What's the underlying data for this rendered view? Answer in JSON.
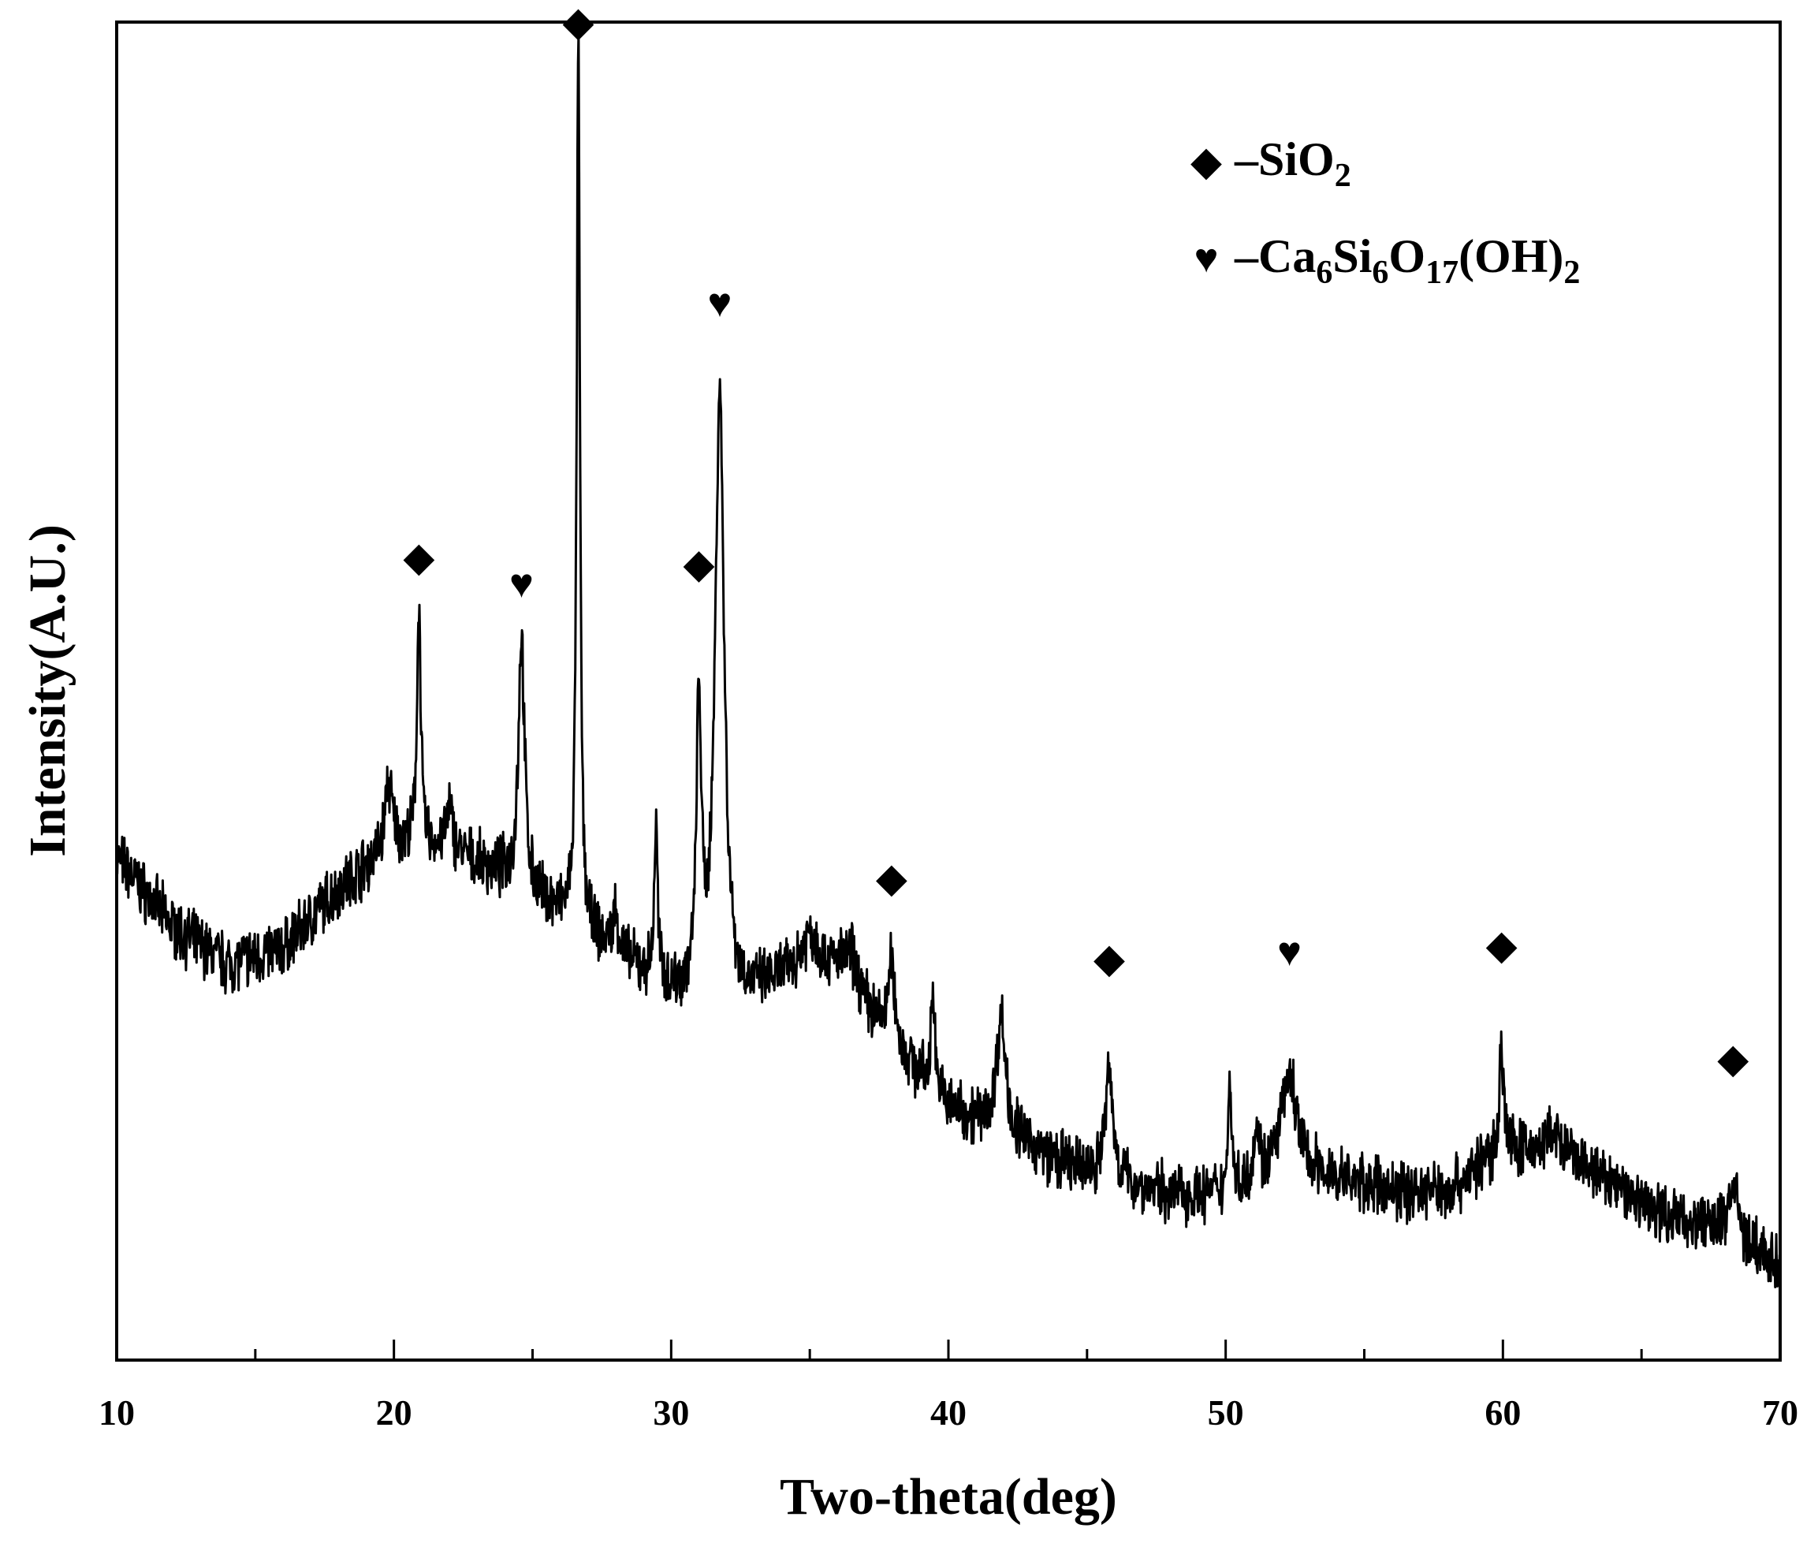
{
  "chart_data": {
    "type": "line",
    "title": "",
    "xlabel": "Two-theta(deg)",
    "ylabel": "Intensity(A.U.)",
    "xlim": [
      10,
      70
    ],
    "ylim": [
      0,
      100
    ],
    "x_ticks": [
      "10",
      "20",
      "30",
      "40",
      "50",
      "60",
      "70"
    ],
    "y_ticks_shown": false,
    "grid": false,
    "legend_position": "top-right",
    "line_color": "#000000",
    "legend": [
      {
        "symbol": "◆",
        "symbol_icon": "diamond-icon",
        "dash": "–",
        "formula": [
          [
            "SiO",
            ""
          ],
          [
            "2",
            "sub"
          ]
        ]
      },
      {
        "symbol": "♥",
        "symbol_icon": "heart-icon",
        "dash": "–",
        "formula": [
          [
            "Ca",
            ""
          ],
          [
            "6",
            "sub"
          ],
          [
            "Si",
            ""
          ],
          [
            "6",
            "sub"
          ],
          [
            "O",
            ""
          ],
          [
            "17",
            "sub"
          ],
          [
            "(OH)",
            ""
          ],
          [
            "2",
            "sub"
          ]
        ]
      }
    ],
    "series": [
      {
        "baseline": [
          [
            10,
            37.6
          ],
          [
            12,
            32.4
          ],
          [
            14,
            29.6
          ],
          [
            16,
            30.7
          ],
          [
            18,
            35.2
          ],
          [
            20,
            38.5
          ],
          [
            22,
            38.0
          ],
          [
            24,
            36.1
          ],
          [
            26,
            33.3
          ],
          [
            28,
            30.1
          ],
          [
            30,
            27.5
          ],
          [
            32,
            26.0
          ],
          [
            34,
            28.3
          ],
          [
            36,
            28.9
          ],
          [
            38,
            23.4
          ],
          [
            40,
            18.8
          ],
          [
            42,
            17.0
          ],
          [
            44,
            14.7
          ],
          [
            46,
            13.2
          ],
          [
            48,
            12.4
          ],
          [
            50,
            12.2
          ],
          [
            52,
            14.0
          ],
          [
            54,
            13.5
          ],
          [
            56,
            12.6
          ],
          [
            58,
            12.7
          ],
          [
            60,
            15.7
          ],
          [
            62,
            15.6
          ],
          [
            64,
            13.0
          ],
          [
            66,
            10.8
          ],
          [
            68,
            9.6
          ],
          [
            70,
            7.0
          ]
        ],
        "peaks": [
          {
            "x": 19.8,
            "h": 5.0,
            "w": 0.15
          },
          {
            "x": 20.9,
            "h": 18.5,
            "w": 0.08
          },
          {
            "x": 22.0,
            "h": 3.0,
            "w": 0.15
          },
          {
            "x": 24.6,
            "h": 19.0,
            "w": 0.13
          },
          {
            "x": 26.65,
            "h": 66.0,
            "w": 0.07
          },
          {
            "x": 28.0,
            "h": 3.0,
            "w": 0.15
          },
          {
            "x": 29.45,
            "h": 11.5,
            "w": 0.07
          },
          {
            "x": 31.0,
            "h": 22.0,
            "w": 0.1
          },
          {
            "x": 31.75,
            "h": 46.0,
            "w": 0.2
          },
          {
            "x": 35.0,
            "h": 3.0,
            "w": 0.4
          },
          {
            "x": 36.5,
            "h": 2.5,
            "w": 0.3
          },
          {
            "x": 37.95,
            "h": 6.0,
            "w": 0.15
          },
          {
            "x": 39.45,
            "h": 8.0,
            "w": 0.08
          },
          {
            "x": 41.9,
            "h": 8.5,
            "w": 0.2
          },
          {
            "x": 45.8,
            "h": 8.0,
            "w": 0.18
          },
          {
            "x": 50.15,
            "h": 8.5,
            "w": 0.08
          },
          {
            "x": 51.1,
            "h": 4.0,
            "w": 0.12
          },
          {
            "x": 52.3,
            "h": 7.0,
            "w": 0.35
          },
          {
            "x": 59.95,
            "h": 7.5,
            "w": 0.1
          },
          {
            "x": 61.8,
            "h": 1.5,
            "w": 0.2
          },
          {
            "x": 68.3,
            "h": 4.0,
            "w": 0.2
          }
        ]
      }
    ],
    "annotations": [
      {
        "symbol": "◆",
        "symbol_icon": "diamond-icon",
        "x": 20.9,
        "y": 59
      },
      {
        "symbol": "♥",
        "symbol_icon": "heart-icon",
        "x": 24.6,
        "y": 57
      },
      {
        "symbol": "◆",
        "symbol_icon": "diamond-icon",
        "x": 26.65,
        "y": 99
      },
      {
        "symbol": "◆",
        "symbol_icon": "diamond-icon",
        "x": 31.0,
        "y": 58.5
      },
      {
        "symbol": "♥",
        "symbol_icon": "heart-icon",
        "x": 31.75,
        "y": 78
      },
      {
        "symbol": "◆",
        "symbol_icon": "diamond-icon",
        "x": 37.95,
        "y": 35
      },
      {
        "symbol": "◆",
        "symbol_icon": "diamond-icon",
        "x": 45.8,
        "y": 29
      },
      {
        "symbol": "♥",
        "symbol_icon": "heart-icon",
        "x": 52.3,
        "y": 29.5
      },
      {
        "symbol": "◆",
        "symbol_icon": "diamond-icon",
        "x": 59.95,
        "y": 30
      },
      {
        "symbol": "◆",
        "symbol_icon": "diamond-icon",
        "x": 68.3,
        "y": 21.5
      }
    ]
  }
}
